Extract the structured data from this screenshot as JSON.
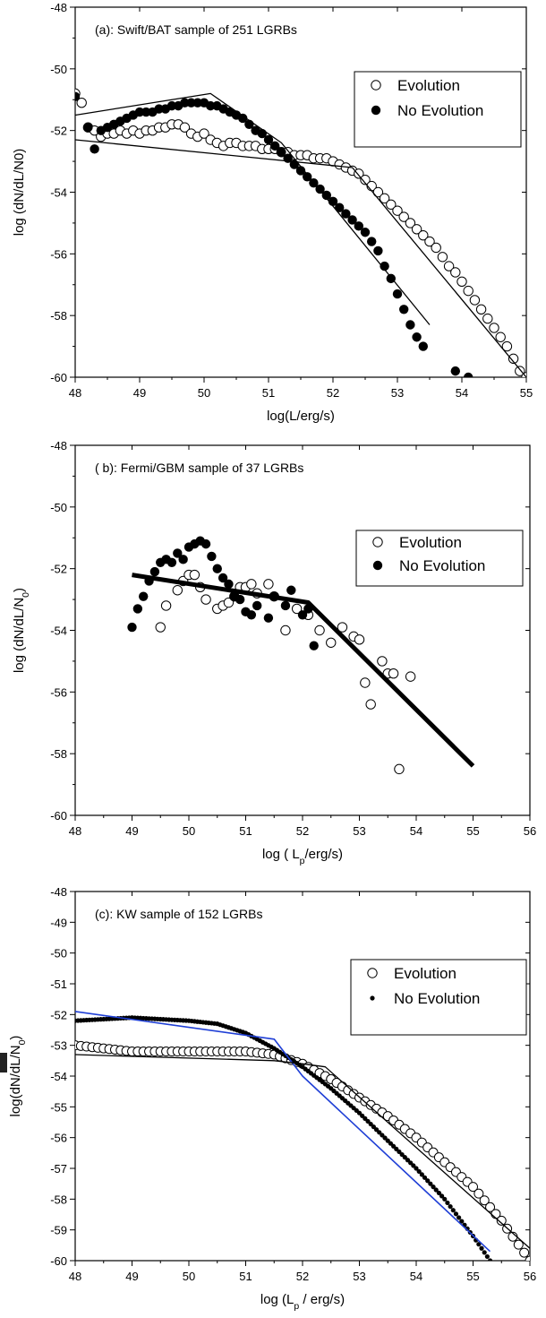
{
  "chart_data": [
    {
      "type": "scatter",
      "title": "(a): Swift/BAT sample of 251 LGRBs",
      "xlabel": "log(L/erg/s)",
      "ylabel": "log (dN/dL/N0)",
      "xlim": [
        48,
        55
      ],
      "ylim": [
        -60,
        -48
      ],
      "xticks": [
        "48",
        "49",
        "50",
        "51",
        "52",
        "53",
        "54",
        "55"
      ],
      "yticks": [
        "-60",
        "-58",
        "-56",
        "-54",
        "-52",
        "-50",
        "-48"
      ],
      "legend_position": "top-right",
      "series": [
        {
          "name": "Evolution",
          "marker": "open-circle",
          "x": [
            48.0,
            48.1,
            48.2,
            48.3,
            48.4,
            48.5,
            48.6,
            48.7,
            48.8,
            48.9,
            49.0,
            49.1,
            49.2,
            49.3,
            49.4,
            49.5,
            49.6,
            49.7,
            49.8,
            49.9,
            50.0,
            50.1,
            50.2,
            50.3,
            50.4,
            50.5,
            50.6,
            50.7,
            50.8,
            50.9,
            51.0,
            51.1,
            51.2,
            51.3,
            51.4,
            51.5,
            51.6,
            51.7,
            51.8,
            51.9,
            52.0,
            52.1,
            52.2,
            52.3,
            52.4,
            52.5,
            52.6,
            52.7,
            52.8,
            52.9,
            53.0,
            53.1,
            53.2,
            53.3,
            53.4,
            53.5,
            53.6,
            53.7,
            53.8,
            53.9,
            54.0,
            54.1,
            54.2,
            54.3,
            54.4,
            54.5,
            54.6,
            54.7,
            54.8,
            54.9,
            55.0
          ],
          "y": [
            -50.8,
            -51.1,
            -51.9,
            -52.0,
            -52.2,
            -52.1,
            -52.1,
            -52.0,
            -52.1,
            -52.0,
            -52.1,
            -52.0,
            -52.0,
            -51.9,
            -51.9,
            -51.8,
            -51.8,
            -51.9,
            -52.1,
            -52.2,
            -52.1,
            -52.3,
            -52.4,
            -52.5,
            -52.4,
            -52.4,
            -52.5,
            -52.5,
            -52.5,
            -52.6,
            -52.6,
            -52.6,
            -52.7,
            -52.7,
            -52.8,
            -52.8,
            -52.8,
            -52.9,
            -52.9,
            -52.9,
            -53.0,
            -53.1,
            -53.2,
            -53.3,
            -53.4,
            -53.6,
            -53.8,
            -54.0,
            -54.2,
            -54.4,
            -54.6,
            -54.8,
            -55.0,
            -55.2,
            -55.4,
            -55.6,
            -55.8,
            -56.1,
            -56.4,
            -56.6,
            -56.9,
            -57.2,
            -57.5,
            -57.8,
            -58.1,
            -58.4,
            -58.7,
            -59.0,
            -59.4,
            -59.8,
            -60.0
          ]
        },
        {
          "name": "No Evolution",
          "marker": "filled-circle",
          "x": [
            48.0,
            48.2,
            48.3,
            48.4,
            48.5,
            48.6,
            48.7,
            48.8,
            48.9,
            49.0,
            49.1,
            49.2,
            49.3,
            49.4,
            49.5,
            49.6,
            49.7,
            49.8,
            49.9,
            50.0,
            50.1,
            50.2,
            50.3,
            50.4,
            50.5,
            50.6,
            50.7,
            50.8,
            50.9,
            51.0,
            51.1,
            51.2,
            51.3,
            51.4,
            51.5,
            51.6,
            51.7,
            51.8,
            51.9,
            52.0,
            52.1,
            52.2,
            52.3,
            52.4,
            52.5,
            52.6,
            52.7,
            52.8,
            52.9,
            53.0,
            53.1,
            53.2,
            53.3,
            53.4,
            53.9,
            54.1
          ],
          "y": [
            -50.9,
            -51.9,
            -52.6,
            -52.0,
            -51.9,
            -51.8,
            -51.7,
            -51.6,
            -51.5,
            -51.4,
            -51.4,
            -51.4,
            -51.3,
            -51.3,
            -51.2,
            -51.2,
            -51.1,
            -51.1,
            -51.1,
            -51.1,
            -51.2,
            -51.2,
            -51.3,
            -51.4,
            -51.5,
            -51.6,
            -51.8,
            -52.0,
            -52.1,
            -52.3,
            -52.5,
            -52.7,
            -52.9,
            -53.1,
            -53.3,
            -53.5,
            -53.7,
            -53.9,
            -54.1,
            -54.3,
            -54.5,
            -54.7,
            -54.9,
            -55.1,
            -55.3,
            -55.6,
            -55.9,
            -56.4,
            -56.8,
            -57.3,
            -57.8,
            -58.3,
            -58.7,
            -59.0,
            -59.8,
            -60.0
          ]
        }
      ],
      "fit_lines": [
        {
          "style": "thin-black",
          "x": [
            48.0,
            50.1,
            51.2,
            53.5
          ],
          "y": [
            -51.5,
            -50.8,
            -52.4,
            -58.3
          ]
        },
        {
          "style": "thin-black",
          "x": [
            48.0,
            52.3,
            55.0
          ],
          "y": [
            -52.3,
            -53.2,
            -60.0
          ]
        }
      ]
    },
    {
      "type": "scatter",
      "title": "( b):  Fermi/GBM  sample of 37 LGRBs",
      "xlabel": "log ( L_p/erg/s)",
      "ylabel": "log (dN/dL/N_0)",
      "xlim": [
        48,
        56
      ],
      "ylim": [
        -60,
        -48
      ],
      "xticks": [
        "48",
        "49",
        "50",
        "51",
        "52",
        "53",
        "54",
        "55",
        "56"
      ],
      "yticks": [
        "-60",
        "-58",
        "-56",
        "-54",
        "-52",
        "-50",
        "-48"
      ],
      "legend_position": "top-right",
      "series": [
        {
          "name": "Evolution",
          "marker": "open-circle",
          "x": [
            49.5,
            49.6,
            49.8,
            49.9,
            50.0,
            50.1,
            50.2,
            50.3,
            50.5,
            50.6,
            50.7,
            50.8,
            50.9,
            51.0,
            51.1,
            51.2,
            51.4,
            51.5,
            51.7,
            51.9,
            52.1,
            52.3,
            52.5,
            52.7,
            52.9,
            53.0,
            53.1,
            53.2,
            53.4,
            53.5,
            53.6,
            53.7,
            53.9
          ],
          "y": [
            -53.9,
            -53.2,
            -52.7,
            -52.4,
            -52.2,
            -52.2,
            -52.6,
            -53.0,
            -53.3,
            -53.2,
            -53.1,
            -52.9,
            -52.6,
            -52.6,
            -52.5,
            -52.8,
            -52.5,
            -52.9,
            -54.0,
            -53.3,
            -53.5,
            -54.0,
            -54.4,
            -53.9,
            -54.2,
            -54.3,
            -55.7,
            -56.4,
            -55.0,
            -55.4,
            -55.4,
            -58.5,
            -55.5
          ]
        },
        {
          "name": "No Evolution",
          "marker": "filled-circle",
          "x": [
            49.0,
            49.1,
            49.2,
            49.3,
            49.4,
            49.5,
            49.6,
            49.7,
            49.8,
            49.9,
            50.0,
            50.1,
            50.2,
            50.3,
            50.4,
            50.5,
            50.6,
            50.7,
            50.8,
            50.9,
            51.0,
            51.1,
            51.2,
            51.4,
            51.5,
            51.7,
            51.8,
            52.0,
            52.1,
            52.2
          ],
          "y": [
            -53.9,
            -53.3,
            -52.9,
            -52.4,
            -52.1,
            -51.8,
            -51.7,
            -51.8,
            -51.5,
            -51.7,
            -51.3,
            -51.2,
            -51.1,
            -51.2,
            -51.6,
            -52.0,
            -52.3,
            -52.5,
            -52.9,
            -53.0,
            -53.4,
            -53.5,
            -53.2,
            -53.6,
            -52.9,
            -53.2,
            -52.7,
            -53.5,
            -53.3,
            -54.5
          ]
        }
      ],
      "fit_lines": [
        {
          "style": "thick-black",
          "x": [
            49.0,
            52.1,
            55.0
          ],
          "y": [
            -52.2,
            -53.1,
            -58.4
          ]
        }
      ]
    },
    {
      "type": "scatter",
      "title": "(c): KW sample of 152 LGRBs",
      "xlabel": "log (L_p / erg/s)",
      "ylabel": "log(dN/dL/N_0)",
      "xlim": [
        48,
        56
      ],
      "ylim": [
        -60,
        -48
      ],
      "xticks": [
        "48",
        "49",
        "50",
        "51",
        "52",
        "53",
        "54",
        "55",
        "56"
      ],
      "yticks": [
        "-60",
        "-59",
        "-58",
        "-57",
        "-56",
        "-55",
        "-54",
        "-53",
        "-52",
        "-51",
        "-50",
        "-49",
        "-48"
      ],
      "legend_position": "top-right",
      "series": [
        {
          "name": "Evolution",
          "marker": "open-circle",
          "x_range": [
            48.0,
            56.0,
            0.1
          ],
          "curve": {
            "x": [
              48.0,
              49.0,
              50.0,
              51.0,
              51.5,
              52.0,
              52.5,
              53.0,
              53.5,
              54.0,
              54.5,
              55.0,
              55.5,
              56.0
            ],
            "y": [
              -53.0,
              -53.2,
              -53.2,
              -53.2,
              -53.3,
              -53.6,
              -54.1,
              -54.7,
              -55.3,
              -56.0,
              -56.8,
              -57.6,
              -58.7,
              -60.0
            ]
          }
        },
        {
          "name": "No Evolution",
          "marker": "small-filled-circle",
          "x_range": [
            48.0,
            55.3,
            0.05
          ],
          "curve": {
            "x": [
              48.0,
              49.0,
              50.0,
              50.5,
              51.0,
              51.5,
              52.0,
              52.5,
              53.0,
              53.5,
              54.0,
              54.5,
              55.0,
              55.3
            ],
            "y": [
              -52.2,
              -52.1,
              -52.2,
              -52.3,
              -52.6,
              -53.1,
              -53.7,
              -54.4,
              -55.2,
              -56.1,
              -57.0,
              -58.0,
              -59.2,
              -60.0
            ]
          }
        }
      ],
      "fit_lines": [
        {
          "style": "thin-blue",
          "color": "#1f3fd6",
          "x": [
            48.0,
            51.5,
            52.0,
            55.3
          ],
          "y": [
            -51.9,
            -52.8,
            -54.0,
            -59.7
          ]
        },
        {
          "style": "thin-black",
          "x": [
            48.0,
            51.5,
            52.0,
            52.4,
            56.0
          ],
          "y": [
            -53.3,
            -53.5,
            -53.6,
            -53.7,
            -59.6
          ]
        }
      ]
    }
  ]
}
